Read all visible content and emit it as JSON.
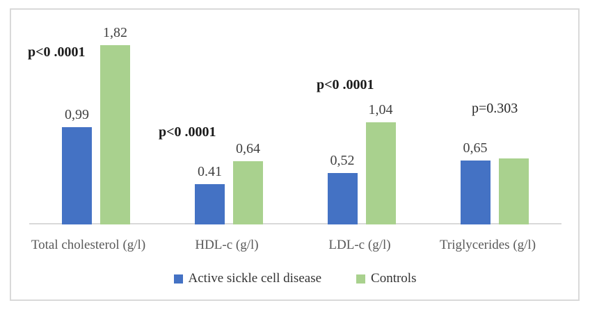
{
  "figure": {
    "background": "#ffffff",
    "border_color": "#d9d9d9",
    "axis_color": "#d9d9d9"
  },
  "chart_data": {
    "type": "bar",
    "title": "",
    "xlabel": "",
    "ylabel": "",
    "grid": false,
    "ylim": [
      0,
      2.0
    ],
    "legend_position": "bottom",
    "categories": [
      "Total cholesterol (g/l)",
      "HDL-c (g/l)",
      "LDL-c (g/l)",
      "Triglycerides (g/l)"
    ],
    "series": [
      {
        "name": "Active sickle cell disease",
        "color": "#4472C4",
        "values": [
          0.99,
          0.41,
          0.52,
          0.65
        ],
        "value_labels": [
          "0,99",
          "0.41",
          "0,52",
          "0,65"
        ]
      },
      {
        "name": "Controls",
        "color": "#A9D18E",
        "values": [
          1.82,
          0.64,
          1.04,
          0.67
        ],
        "value_labels": [
          "1,82",
          "0,64",
          "1,04",
          ""
        ]
      }
    ],
    "annotations": [
      {
        "text": "p<0 .0001",
        "bold": true
      },
      {
        "text": "p<0 .0001",
        "bold": true
      },
      {
        "text": "p<0 .0001",
        "bold": true
      },
      {
        "text": "p=0.303",
        "bold": false
      }
    ]
  }
}
